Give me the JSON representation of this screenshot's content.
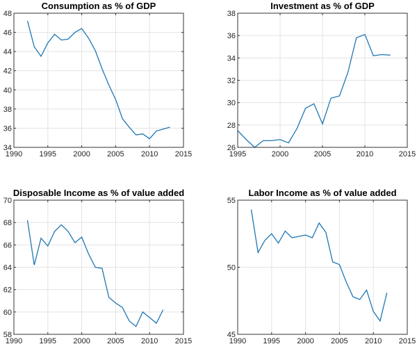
{
  "chart_data": [
    {
      "type": "line",
      "title": "Consumption as % of GDP",
      "xlim": [
        1990,
        2015
      ],
      "ylim": [
        34,
        48
      ],
      "xticks": [
        1990,
        1995,
        2000,
        2005,
        2010,
        2015
      ],
      "yticks": [
        34,
        36,
        38,
        40,
        42,
        44,
        46,
        48
      ],
      "grid": true,
      "series": [
        {
          "x": [
            1992,
            1993,
            1994,
            1995,
            1996,
            1997,
            1998,
            1999,
            2000,
            2001,
            2002,
            2003,
            2004,
            2005,
            2006,
            2007,
            2008,
            2009,
            2010,
            2011,
            2012,
            2013
          ],
          "y": [
            47.2,
            44.5,
            43.5,
            44.9,
            45.8,
            45.2,
            45.3,
            46.0,
            46.4,
            45.4,
            44.1,
            42.2,
            40.5,
            39.0,
            37.0,
            36.1,
            35.3,
            35.4,
            34.9,
            35.7,
            35.9,
            36.1
          ],
          "color": "#1f77b4"
        }
      ]
    },
    {
      "type": "line",
      "title": "Investment as % of GDP",
      "xlim": [
        1995,
        2015
      ],
      "ylim": [
        26,
        38
      ],
      "xticks": [
        1995,
        2000,
        2005,
        2010,
        2015
      ],
      "yticks": [
        26,
        28,
        30,
        32,
        34,
        36,
        38
      ],
      "grid": true,
      "series": [
        {
          "x": [
            1995,
            1996,
            1997,
            1998,
            1999,
            2000,
            2001,
            2002,
            2003,
            2004,
            2005,
            2006,
            2007,
            2008,
            2009,
            2010,
            2011,
            2012,
            2013
          ],
          "y": [
            27.5,
            26.7,
            26.0,
            26.6,
            26.6,
            26.7,
            26.4,
            27.7,
            29.5,
            29.9,
            28.1,
            30.4,
            30.6,
            32.7,
            35.8,
            36.1,
            34.2,
            34.3,
            34.25
          ],
          "color": "#1f77b4"
        }
      ]
    },
    {
      "type": "line",
      "title": "Disposable Income as % of value added",
      "xlim": [
        1990,
        2015
      ],
      "ylim": [
        58,
        70
      ],
      "xticks": [
        1990,
        1995,
        2000,
        2005,
        2010,
        2015
      ],
      "yticks": [
        58,
        60,
        62,
        64,
        66,
        68,
        70
      ],
      "grid": true,
      "series": [
        {
          "x": [
            1992,
            1993,
            1994,
            1995,
            1996,
            1997,
            1998,
            1999,
            2000,
            2001,
            2002,
            2003,
            2004,
            2005,
            2006,
            2007,
            2008,
            2009,
            2010,
            2011,
            2012
          ],
          "y": [
            68.2,
            64.2,
            66.6,
            65.9,
            67.2,
            67.8,
            67.2,
            66.2,
            66.7,
            65.2,
            64.0,
            63.9,
            61.3,
            60.8,
            60.4,
            59.2,
            58.7,
            60.0,
            59.5,
            59.0,
            60.2
          ],
          "color": "#1f77b4"
        }
      ]
    },
    {
      "type": "line",
      "title": "Labor Income as % of value added",
      "xlim": [
        1990,
        2015
      ],
      "ylim": [
        45,
        55
      ],
      "xticks": [
        1990,
        1995,
        2000,
        2005,
        2010,
        2015
      ],
      "yticks": [
        45,
        50,
        55
      ],
      "grid": true,
      "series": [
        {
          "x": [
            1992,
            1993,
            1994,
            1995,
            1996,
            1997,
            1998,
            1999,
            2000,
            2001,
            2002,
            2003,
            2004,
            2005,
            2006,
            2007,
            2008,
            2009,
            2010,
            2011,
            2012
          ],
          "y": [
            54.3,
            51.1,
            52.0,
            52.5,
            51.8,
            52.7,
            52.2,
            52.3,
            52.4,
            52.2,
            53.3,
            52.6,
            50.4,
            50.2,
            48.9,
            47.8,
            47.6,
            48.3,
            46.7,
            46.0,
            48.1
          ],
          "color": "#1f77b4"
        }
      ]
    }
  ]
}
